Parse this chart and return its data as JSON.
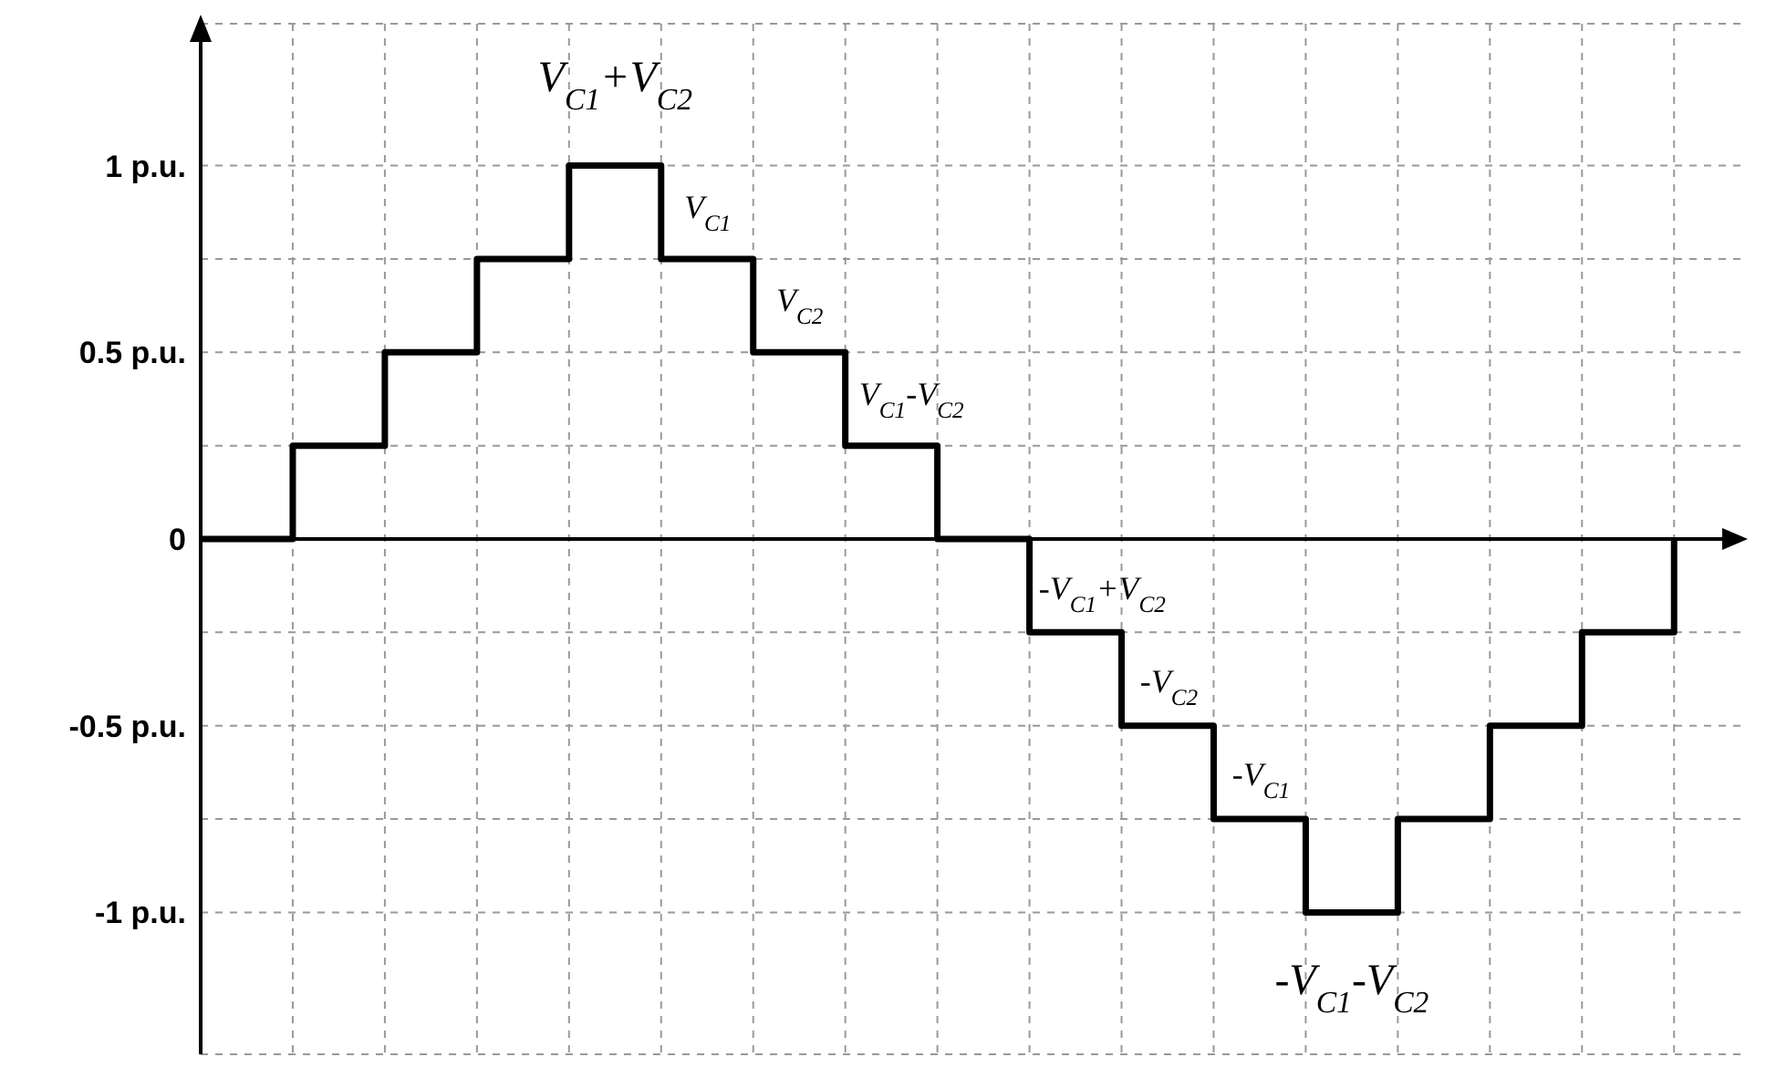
{
  "chart_data": {
    "type": "step",
    "categories": [
      null,
      null,
      null,
      null,
      null,
      null,
      null,
      null,
      null,
      null,
      null,
      null,
      null,
      null,
      null,
      null,
      null
    ],
    "series": [
      {
        "color": "#000000",
        "values": [
          0,
          0.25,
          0.5,
          0.75,
          1,
          0.75,
          0.5,
          0.25,
          0,
          -0.25,
          -0.5,
          -0.75,
          -1,
          -0.75,
          -0.5,
          -0.25,
          0
        ]
      }
    ],
    "ylim": [
      -1.38,
      1.38
    ],
    "yticks": [
      {
        "value": -1,
        "label": "-1 p.u."
      },
      {
        "value": -0.75,
        "label": null
      },
      {
        "value": -0.5,
        "label": "-0.5 p.u."
      },
      {
        "value": -0.25,
        "label": null
      },
      0,
      {
        "value": 0.25,
        "label": null
      },
      {
        "value": 0.5,
        "label": "0.5 p.u."
      },
      {
        "value": 0.75,
        "label": null
      },
      {
        "value": 1,
        "label": "1 p.u."
      }
    ],
    "grid": true,
    "tick_labels": "y",
    "annotations": [
      "V$_{C1}$+V$_{C2}$",
      "V$_{C1}$",
      "V$_{C2}$",
      "V$_{C1}$-V$_{C2}$",
      "-V$_{C1}$+V$_{C2}$",
      "-V$_{C2}$",
      "-V$_{C1}$",
      "-V$_{C1}$-V$_{C2}$"
    ]
  }
}
